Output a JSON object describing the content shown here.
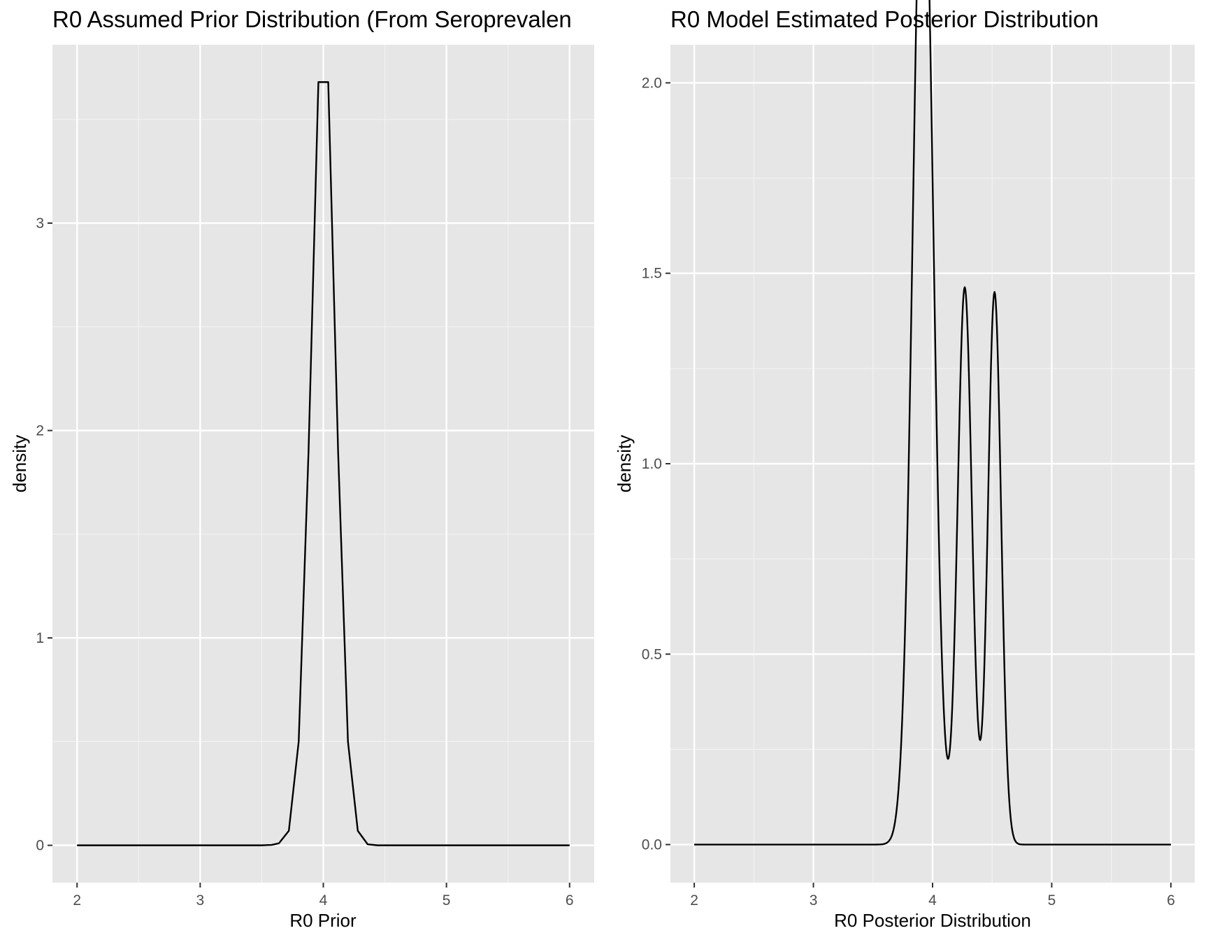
{
  "colors": {
    "panel_background": "#e6e6e6",
    "grid_major": "#ffffff",
    "grid_minor": "#f2f2f2",
    "line": "#000000",
    "tick_text": "#4d4d4d",
    "title_text": "#000000"
  },
  "chart_data": [
    {
      "type": "line",
      "title": "R0 Assumed Prior Distribution (From Seroprevalen",
      "xlabel": "R0 Prior",
      "ylabel": "density",
      "xlim": [
        1.8,
        6.2
      ],
      "ylim": [
        -0.18,
        3.86
      ],
      "grid": true,
      "legend": "none",
      "x_ticks": [
        2,
        3,
        4,
        5,
        6
      ],
      "x_tick_labels": [
        "2",
        "3",
        "4",
        "5",
        "6"
      ],
      "y_ticks": [
        0,
        1,
        2,
        3
      ],
      "y_tick_labels": [
        "0",
        "1",
        "2",
        "3"
      ],
      "x_minor": [
        2.5,
        3.5,
        4.5,
        5.5
      ],
      "y_minor": [
        0.5,
        1.5,
        2.5,
        3.5
      ],
      "series": [
        {
          "x": [
            2.0,
            3.5,
            3.58,
            3.64,
            3.72,
            3.8,
            3.88,
            3.96,
            4.04,
            4.12,
            4.2,
            4.28,
            4.36,
            4.44,
            6.0
          ],
          "y": [
            0.0,
            0.0,
            0.002,
            0.01,
            0.07,
            0.5,
            1.9,
            3.68,
            3.68,
            1.9,
            0.5,
            0.07,
            0.005,
            0.0,
            0.0
          ]
        }
      ]
    },
    {
      "type": "line",
      "title": "R0 Model Estimated Posterior Distribution",
      "xlabel": "R0 Posterior Distribution",
      "ylabel": "density",
      "xlim": [
        1.8,
        6.2
      ],
      "ylim": [
        -0.1,
        2.1
      ],
      "grid": true,
      "legend": "none",
      "x_ticks": [
        2,
        3,
        4,
        5,
        6
      ],
      "x_tick_labels": [
        "2",
        "3",
        "4",
        "5",
        "6"
      ],
      "y_ticks": [
        0,
        0.5,
        1,
        1.5,
        2
      ],
      "y_tick_labels": [
        "0.0",
        "0.5",
        "1.0",
        "1.5",
        "2.0"
      ],
      "x_minor": [
        2.5,
        3.5,
        4.5,
        5.5
      ],
      "y_minor": [
        0.25,
        0.75,
        1.25,
        1.75
      ],
      "series": [
        {
          "components": [
            {
              "weight": 0.58,
              "mean": 3.92,
              "sd": 0.085
            },
            {
              "weight": 0.22,
              "mean": 4.27,
              "sd": 0.06
            },
            {
              "weight": 0.2,
              "mean": 4.52,
              "sd": 0.055
            }
          ]
        }
      ]
    }
  ]
}
